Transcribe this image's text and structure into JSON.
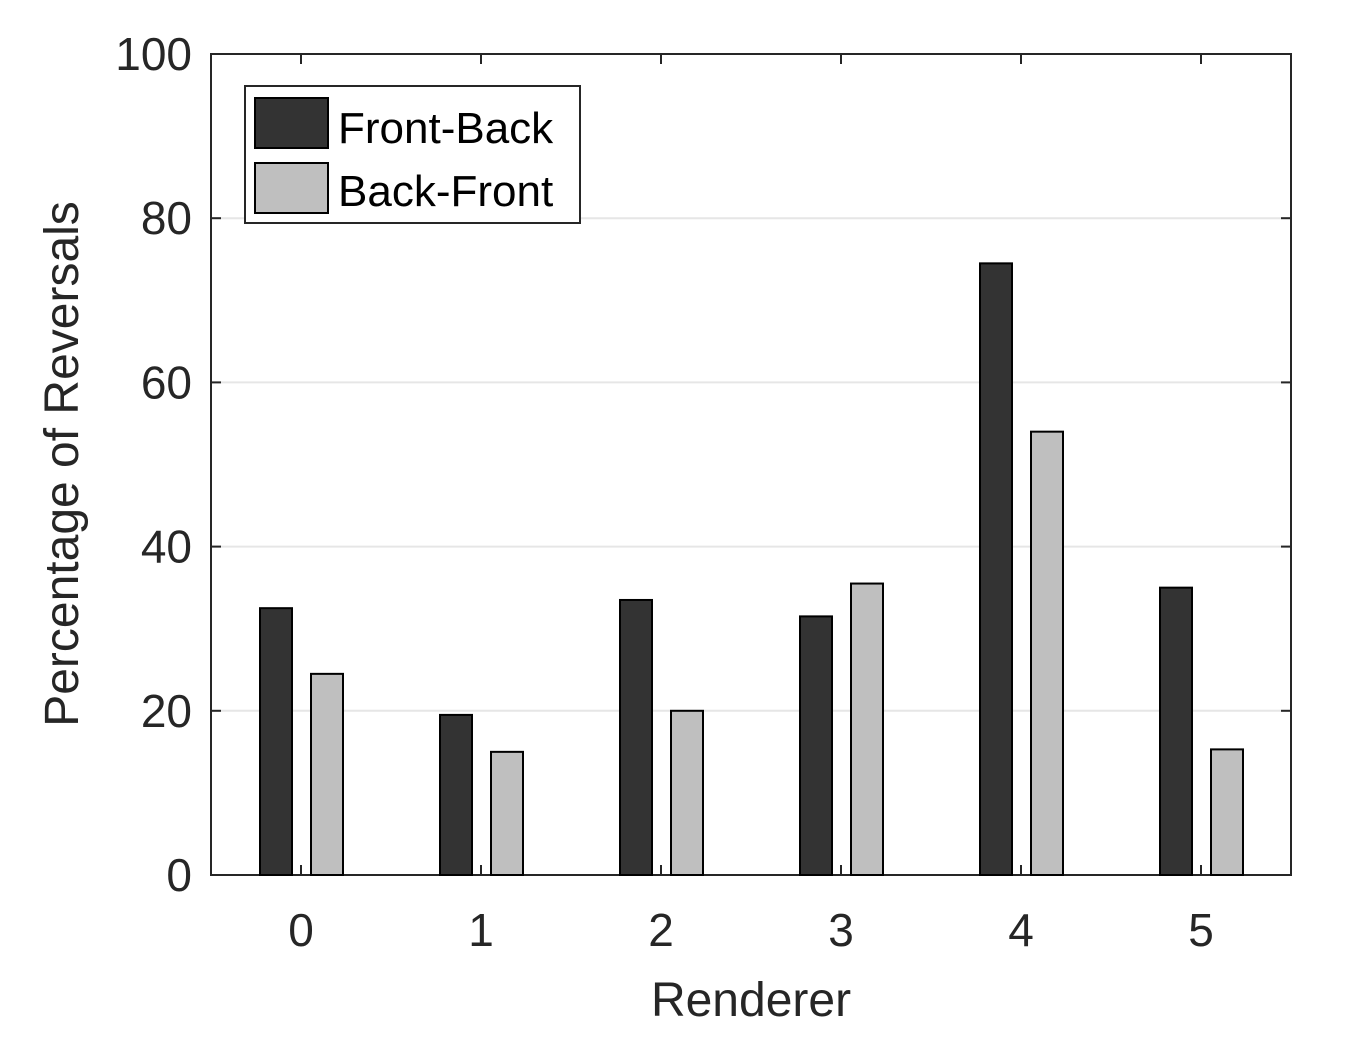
{
  "chart_data": {
    "type": "bar",
    "xlabel": "Renderer",
    "ylabel": "Percentage of Reversals",
    "categories": [
      "0",
      "1",
      "2",
      "3",
      "4",
      "5"
    ],
    "ylim": [
      0,
      100
    ],
    "yticks": [
      "0",
      "20",
      "40",
      "60",
      "80",
      "100"
    ],
    "grid": "horizontal",
    "legend_position": "top-left",
    "series": [
      {
        "name": "Front-Back",
        "color": "#333333",
        "values": [
          32.5,
          19.5,
          33.5,
          31.5,
          74.5,
          35
        ]
      },
      {
        "name": "Back-Front",
        "color": "#bfbfbf",
        "values": [
          24.5,
          15,
          20,
          35.5,
          54,
          15.3
        ]
      }
    ]
  }
}
